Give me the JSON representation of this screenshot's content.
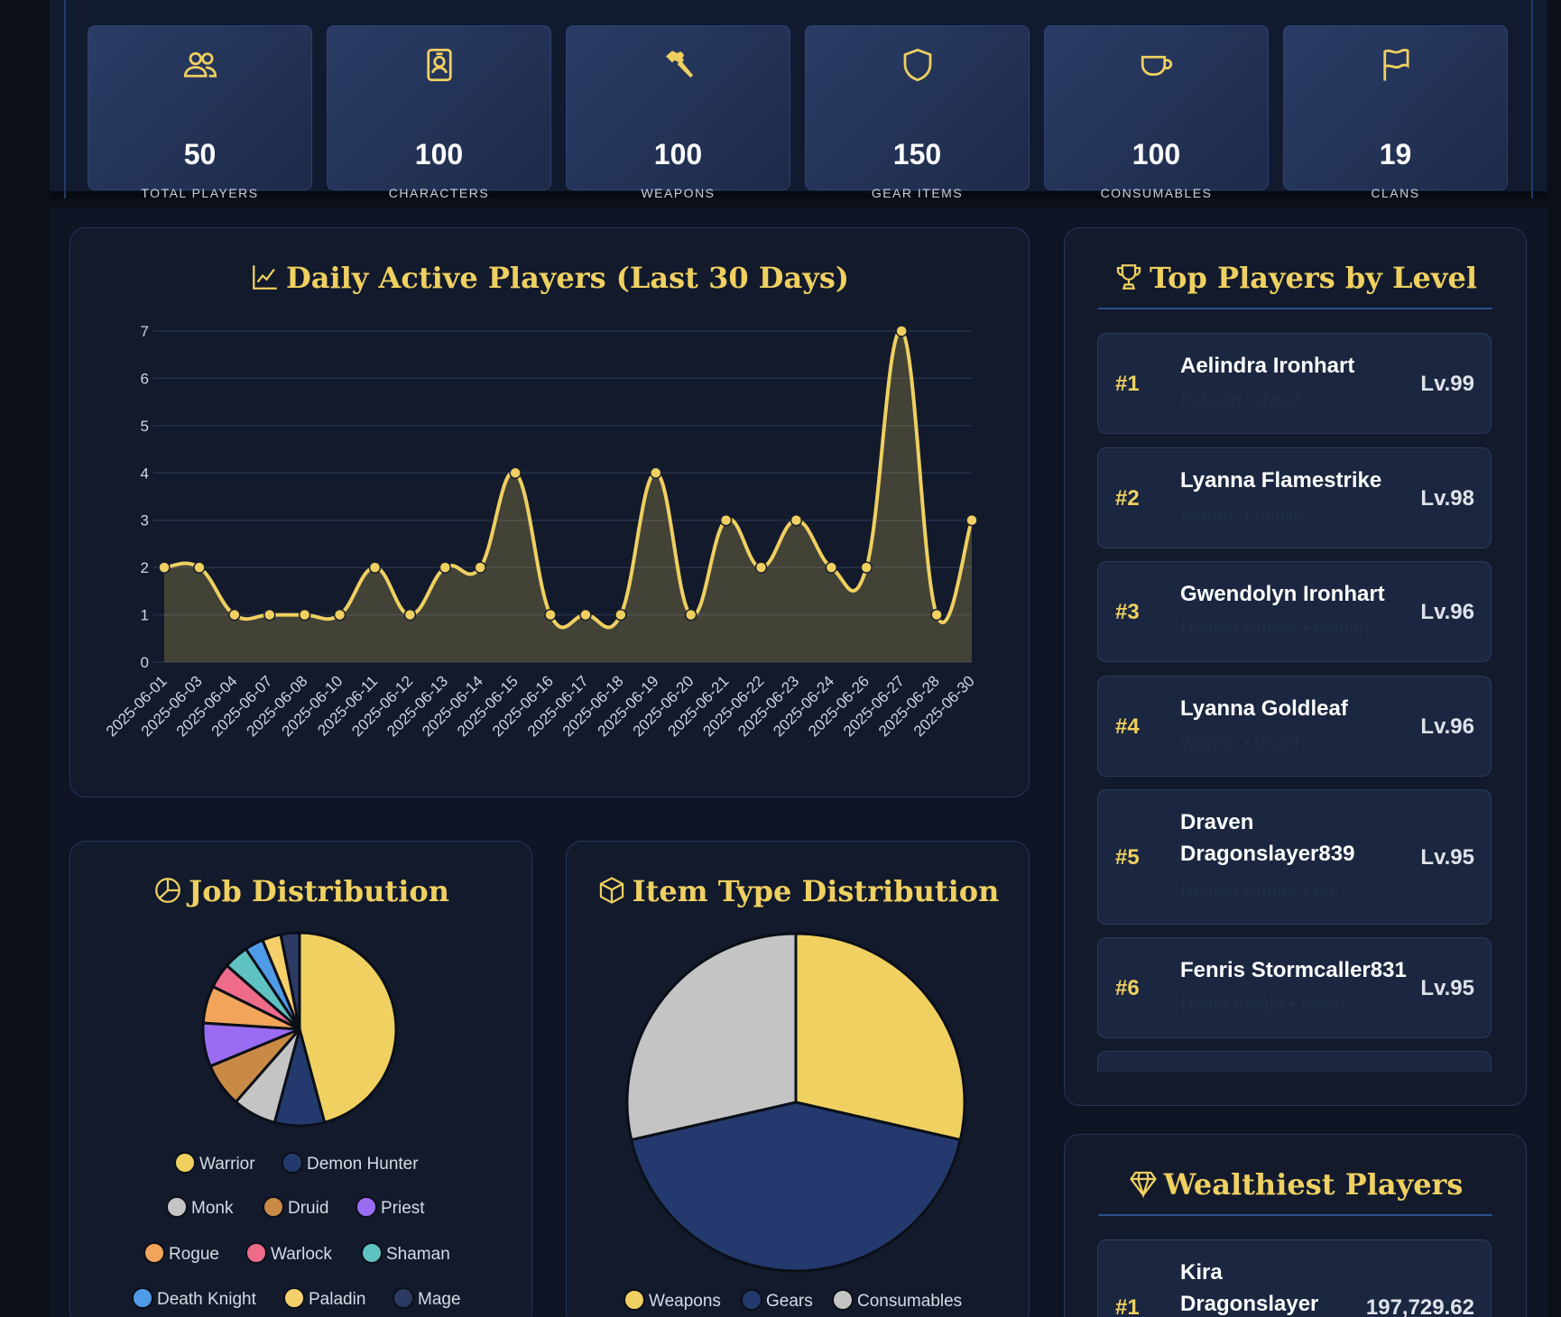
{
  "stats": [
    {
      "icon": "users-icon",
      "value": "50",
      "label": "TOTAL PLAYERS"
    },
    {
      "icon": "id-badge-icon",
      "value": "100",
      "label": "CHARACTERS"
    },
    {
      "icon": "hammer-icon",
      "value": "100",
      "label": "WEAPONS"
    },
    {
      "icon": "shield-icon",
      "value": "150",
      "label": "GEAR ITEMS"
    },
    {
      "icon": "mug-icon",
      "value": "100",
      "label": "CONSUMABLES"
    },
    {
      "icon": "flag-icon",
      "value": "19",
      "label": "CLANS"
    }
  ],
  "colors": {
    "accent": "#efd060",
    "navy": "#243a6e",
    "silver": "#c4c4c4"
  },
  "daily_panel": {
    "title": "Daily Active Players (Last 30 Days)"
  },
  "job_panel": {
    "title": "Job Distribution"
  },
  "item_panel": {
    "title": "Item Type Distribution"
  },
  "top_players": {
    "title": "Top Players by Level",
    "players": [
      {
        "rank": "#1",
        "name": "Aelindra Ironhart",
        "sub": "Paladin • dwarf",
        "level": "Lv.99"
      },
      {
        "rank": "#2",
        "name": "Lyanna Flamestrike",
        "sub": "Warrior • goblin",
        "level": "Lv.98"
      },
      {
        "rank": "#3",
        "name": "Gwendolyn Ironhart",
        "sub": "Demon Hunter • human",
        "level": "Lv.96"
      },
      {
        "rank": "#4",
        "name": "Lyanna Goldleaf",
        "sub": "Warrior • dwarf",
        "level": "Lv.96"
      },
      {
        "rank": "#5",
        "name": "Draven Dragonslayer839",
        "sub": "Demon Hunter • orc",
        "level": "Lv.95"
      },
      {
        "rank": "#6",
        "name": "Fenris Stormcaller831",
        "sub": "Death Knight • dwarf",
        "level": "Lv.95"
      }
    ]
  },
  "wealthiest": {
    "title": "Wealthiest Players",
    "players": [
      {
        "rank": "#1",
        "name": "Kira Dragonslayer",
        "amount": "197,729.62"
      }
    ]
  },
  "chart_data": [
    {
      "type": "area",
      "title": "Daily Active Players (Last 30 Days)",
      "x": [
        "2025-06-01",
        "2025-06-03",
        "2025-06-04",
        "2025-06-07",
        "2025-06-08",
        "2025-06-10",
        "2025-06-11",
        "2025-06-12",
        "2025-06-13",
        "2025-06-14",
        "2025-06-15",
        "2025-06-16",
        "2025-06-17",
        "2025-06-18",
        "2025-06-19",
        "2025-06-20",
        "2025-06-21",
        "2025-06-22",
        "2025-06-23",
        "2025-06-24",
        "2025-06-26",
        "2025-06-27",
        "2025-06-28",
        "2025-06-30"
      ],
      "values": [
        2,
        2,
        1,
        1,
        1,
        1,
        2,
        1,
        2,
        2,
        4,
        1,
        1,
        1,
        4,
        1,
        3,
        2,
        3,
        2,
        2,
        7,
        1,
        3
      ],
      "ylim": [
        0,
        7
      ],
      "yticks": [
        "0",
        "1",
        "2",
        "3",
        "4",
        "5",
        "6",
        "7"
      ],
      "grid": true
    },
    {
      "type": "pie",
      "title": "Job Distribution",
      "categories": [
        "Warrior",
        "Demon Hunter",
        "Monk",
        "Druid",
        "Priest",
        "Rogue",
        "Warlock",
        "Shaman",
        "Death Knight",
        "Paladin",
        "Mage"
      ],
      "values": [
        44,
        8,
        7,
        7,
        7,
        6,
        4,
        4,
        3,
        3,
        3
      ],
      "colors": [
        "#efd060",
        "#243a6e",
        "#c4c4c4",
        "#c98a46",
        "#9a6cf2",
        "#f2a55a",
        "#ef6b8a",
        "#5fc2c0",
        "#4f9be8",
        "#f5d06a",
        "#2c3a64"
      ]
    },
    {
      "type": "pie",
      "title": "Item Type Distribution",
      "categories": [
        "Weapons",
        "Gears",
        "Consumables"
      ],
      "values": [
        100,
        150,
        100
      ],
      "colors": [
        "#efd060",
        "#243a6e",
        "#c4c4c4"
      ]
    }
  ]
}
